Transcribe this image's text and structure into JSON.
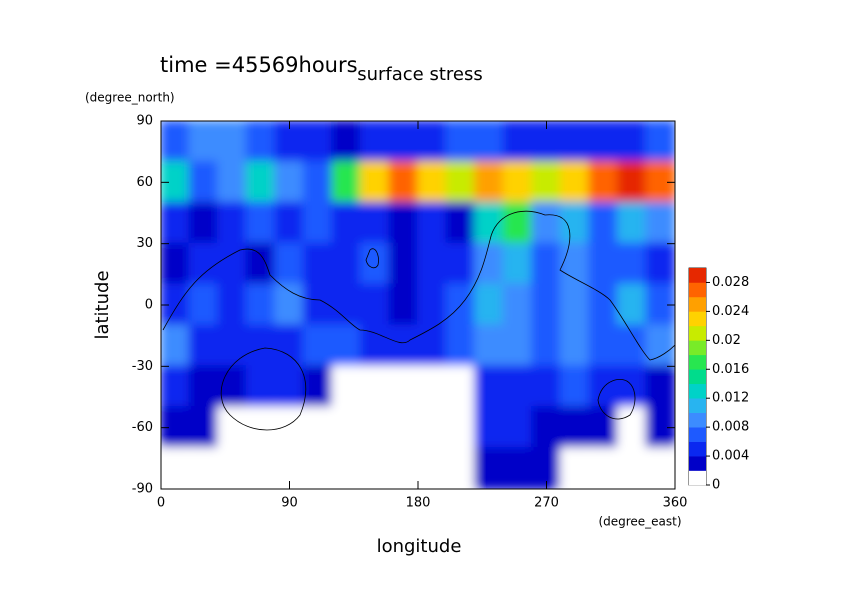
{
  "chart_data": {
    "type": "heatmap",
    "title": "surface stress",
    "subtitle": "time =45569hours",
    "x_label": "longitude",
    "y_label": "latitude",
    "x_unit": "(degree_east)",
    "y_unit": "(degree_north)",
    "xlim": [
      0,
      360
    ],
    "xticks": [
      0,
      90,
      180,
      270,
      360
    ],
    "ylim": [
      -90,
      90
    ],
    "yticks": [
      -90,
      -60,
      -30,
      0,
      30,
      60,
      90
    ],
    "x": [
      10,
      30,
      50,
      70,
      90,
      110,
      130,
      150,
      170,
      190,
      210,
      230,
      250,
      270,
      290,
      310,
      330,
      350
    ],
    "y": [
      80,
      60,
      40,
      20,
      0,
      -20,
      -40,
      -60,
      -80
    ],
    "values": [
      [
        0.006,
        0.008,
        0.008,
        0.006,
        0.004,
        0.004,
        0.002,
        0.004,
        0.004,
        0.004,
        0.006,
        0.006,
        0.004,
        0.004,
        0.004,
        0.004,
        0.004,
        0.006
      ],
      [
        0.012,
        0.006,
        0.008,
        0.012,
        0.008,
        0.006,
        0.016,
        0.022,
        0.026,
        0.022,
        0.02,
        0.024,
        0.022,
        0.02,
        0.022,
        0.026,
        0.028,
        0.026
      ],
      [
        0.004,
        0.002,
        0.004,
        0.006,
        0.004,
        0.006,
        0.004,
        0.004,
        0.002,
        0.004,
        0.002,
        0.012,
        0.016,
        0.008,
        0.01,
        0.006,
        0.01,
        0.008
      ],
      [
        0.002,
        0.004,
        0.004,
        0.002,
        0.006,
        0.004,
        0.004,
        0.006,
        0.002,
        0.004,
        0.004,
        0.008,
        0.01,
        0.006,
        0.008,
        0.006,
        0.006,
        0.004
      ],
      [
        0.004,
        0.006,
        0.004,
        0.006,
        0.008,
        0.004,
        0.004,
        0.004,
        0.002,
        0.004,
        0.006,
        0.01,
        0.008,
        0.006,
        0.008,
        0.006,
        0.01,
        0.006
      ],
      [
        0.008,
        0.004,
        0.004,
        0.004,
        0.004,
        0.006,
        0.006,
        0.004,
        0.004,
        0.004,
        0.006,
        0.008,
        0.008,
        0.006,
        0.008,
        0.006,
        0.006,
        0.008
      ],
      [
        0.004,
        0.002,
        0.002,
        0.004,
        0.004,
        0.002,
        0,
        0,
        0,
        0,
        0,
        0.004,
        0.004,
        0.004,
        0.006,
        0.004,
        0.004,
        0.002
      ],
      [
        0.002,
        0.002,
        0,
        0,
        0,
        0,
        0,
        0,
        0,
        0,
        0,
        0.004,
        0.004,
        0.002,
        0.002,
        0.002,
        0,
        0.002
      ],
      [
        0,
        0,
        0,
        0,
        0,
        0,
        0,
        0,
        0,
        0,
        0,
        0.002,
        0.002,
        0.002,
        0,
        0,
        0,
        0
      ]
    ],
    "colorbar_lim": [
      0,
      0.03
    ],
    "colorbar_ticks": [
      0,
      0.004,
      0.008,
      0.012,
      0.016,
      0.02,
      0.024,
      0.028
    ],
    "colors": [
      "#ffffff",
      "#0000c8",
      "#0a28f0",
      "#1e5aff",
      "#3c8cff",
      "#28b4f0",
      "#00d2c8",
      "#00dc8c",
      "#28e650",
      "#78eb28",
      "#c8eb00",
      "#ffd200",
      "#ffa000",
      "#ff6400",
      "#e62800"
    ]
  }
}
